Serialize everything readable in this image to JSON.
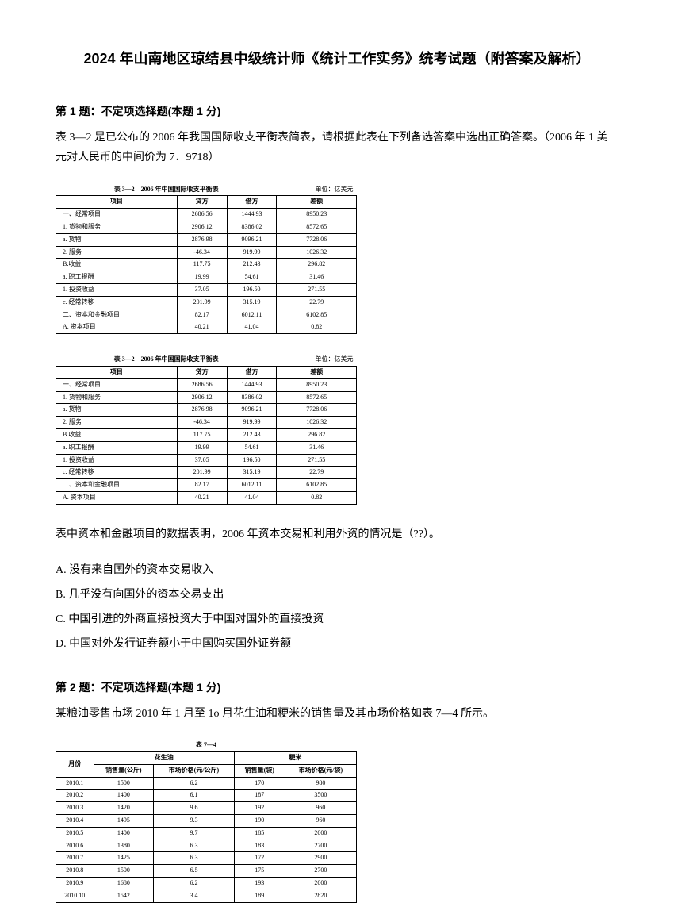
{
  "title": "2024 年山南地区琼结县中级统计师《统计工作实务》统考试题（附答案及解析）",
  "q1": {
    "header": "第 1 题：不定项选择题(本题 1 分)",
    "text": "表 3—2 是已公布的 2006 年我国国际收支平衡表简表，请根据此表在下列备选答案中选出正确答案。（2006 年 1 美元对人民币的中间价为 7．9718）",
    "table_title": "表 3—2　2006 年中国国际收支平衡表",
    "table_unit": "单位：亿美元",
    "headers": [
      "项目",
      "贷方",
      "借方",
      "差额"
    ],
    "rows": [
      [
        "一、经常项目",
        "2686.56",
        "1444.93",
        "8950.23"
      ],
      [
        "1. 货物和服务",
        "2906.12",
        "8386.02",
        "8572.65"
      ],
      [
        "a. 货物",
        "2876.98",
        "9096.21",
        "7728.06"
      ],
      [
        "2. 服务",
        "-46.34",
        "919.99",
        "1026.32"
      ],
      [
        "B.收益",
        "117.75",
        "212.43",
        "296.82"
      ],
      [
        "a. 职工报酬",
        "19.99",
        "54.61",
        "31.46"
      ],
      [
        "1. 投资收益",
        "37.05",
        "196.50",
        "271.55"
      ],
      [
        "c. 经常转移",
        "201.99",
        "315.19",
        "22.79"
      ],
      [
        "二、资本和金融项目",
        "82.17",
        "6012.11",
        "6102.85"
      ],
      [
        "A. 资本项目",
        "40.21",
        "41.04",
        "0.82"
      ]
    ],
    "followup": "表中资本和金融项目的数据表明，2006 年资本交易和利用外资的情况是（??）。",
    "options": {
      "A": "A. 没有来自国外的资本交易收入",
      "B": "B. 几乎没有向国外的资本交易支出",
      "C": "C. 中国引进的外商直接投资大于中国对国外的直接投资",
      "D": "D. 中国对外发行证券额小于中国购买国外证券额"
    }
  },
  "q2": {
    "header": "第 2 题：不定项选择题(本题 1 分)",
    "text": "某粮油零售市场 2010 年 1 月至 1o 月花生油和粳米的销售量及其市场价格如表 7—4 所示。",
    "table_title": "表 7—4",
    "group_headers": [
      "月份",
      "花生油",
      "粳米"
    ],
    "sub_headers": [
      "销售量(公斤)",
      "市场价格(元/公斤)",
      "销售量(袋)",
      "市场价格(元/袋)"
    ],
    "rows": [
      [
        "2010.1",
        "1500",
        "6.2",
        "170",
        "980"
      ],
      [
        "2010.2",
        "1400",
        "6.1",
        "187",
        "3500"
      ],
      [
        "2010.3",
        "1420",
        "9.6",
        "192",
        "960"
      ],
      [
        "2010.4",
        "1495",
        "9.3",
        "190",
        "960"
      ],
      [
        "2010.5",
        "1400",
        "9.7",
        "185",
        "2000"
      ],
      [
        "2010.6",
        "1380",
        "6.3",
        "183",
        "2700"
      ],
      [
        "2010.7",
        "1425",
        "6.3",
        "172",
        "2900"
      ],
      [
        "2010.8",
        "1500",
        "6.5",
        "175",
        "2700"
      ],
      [
        "2010.9",
        "1680",
        "6.2",
        "193",
        "2000"
      ],
      [
        "2010.10",
        "1542",
        "3.4",
        "189",
        "2820"
      ]
    ]
  }
}
